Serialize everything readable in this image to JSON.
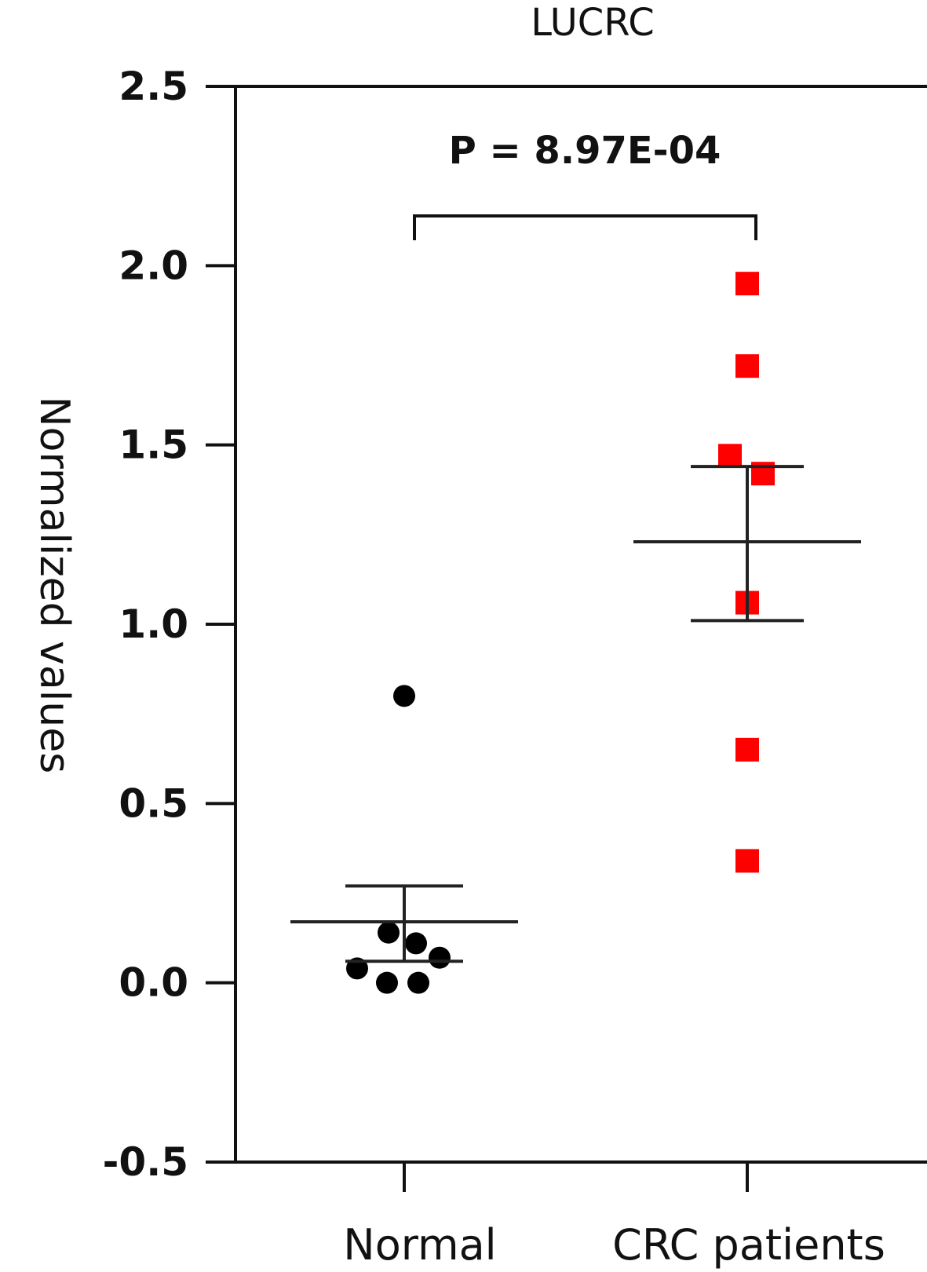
{
  "chart_data": {
    "type": "scatter",
    "title": "LUCRC",
    "xlabel": "",
    "ylabel": "Normalized values",
    "ylim": [
      -0.5,
      2.5
    ],
    "yticks": [
      "2.5",
      "2.0",
      "1.5",
      "1.0",
      "0.5",
      "0.0",
      "-0.5"
    ],
    "ytick_values": [
      2.5,
      2.0,
      1.5,
      1.0,
      0.5,
      0.0,
      -0.5
    ],
    "categories": [
      "Normal",
      "CRC patients"
    ],
    "annotation": "P = 8.97E-04",
    "grid": false,
    "series": [
      {
        "category": "Normal",
        "color": "#000000",
        "marker": "circle",
        "values": [
          0.8,
          0.14,
          0.11,
          0.07,
          0.04,
          0.0,
          0.0
        ],
        "mean": 0.17,
        "sem_upper": 0.27,
        "sem_lower": 0.06
      },
      {
        "category": "CRC patients",
        "color": "#ff0000",
        "marker": "square",
        "values": [
          1.95,
          1.72,
          1.47,
          1.42,
          1.06,
          0.65,
          0.34
        ],
        "mean": 1.23,
        "sem_upper": 1.44,
        "sem_lower": 1.01
      }
    ]
  }
}
